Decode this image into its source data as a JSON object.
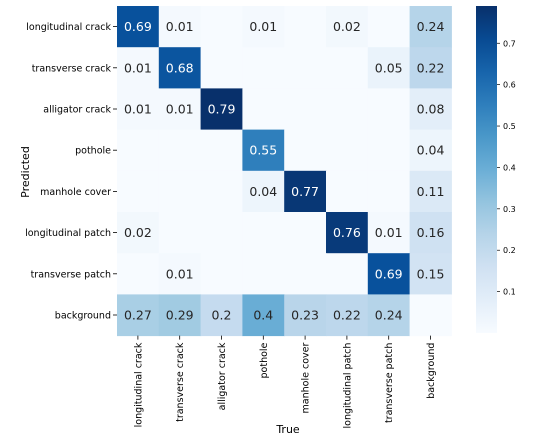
{
  "chart_data": {
    "type": "heatmap",
    "title": "",
    "xlabel": "True",
    "ylabel": "Predicted",
    "x_categories": [
      "longitudinal crack",
      "transverse crack",
      "alligator crack",
      "pothole",
      "manhole cover",
      "longitudinal patch",
      "transverse patch",
      "background"
    ],
    "y_categories": [
      "longitudinal crack",
      "transverse crack",
      "alligator crack",
      "pothole",
      "manhole cover",
      "longitudinal patch",
      "transverse patch",
      "background"
    ],
    "values": [
      [
        0.69,
        0.01,
        null,
        0.01,
        null,
        0.02,
        null,
        0.24
      ],
      [
        0.01,
        0.68,
        null,
        null,
        null,
        null,
        0.05,
        0.22
      ],
      [
        0.01,
        0.01,
        0.79,
        null,
        null,
        null,
        null,
        0.08
      ],
      [
        null,
        null,
        null,
        0.55,
        null,
        null,
        null,
        0.04
      ],
      [
        null,
        null,
        null,
        0.04,
        0.77,
        null,
        null,
        0.11
      ],
      [
        0.02,
        null,
        null,
        null,
        null,
        0.76,
        0.01,
        0.16
      ],
      [
        null,
        0.01,
        null,
        null,
        null,
        null,
        0.69,
        0.15
      ],
      [
        0.27,
        0.29,
        0.2,
        0.4,
        0.23,
        0.22,
        0.24,
        null
      ]
    ],
    "colorbar": {
      "min": 0,
      "max": 0.79,
      "ticks": [
        "0.1",
        "0.2",
        "0.3",
        "0.4",
        "0.5",
        "0.6",
        "0.7"
      ],
      "colormap": "Blues"
    }
  }
}
